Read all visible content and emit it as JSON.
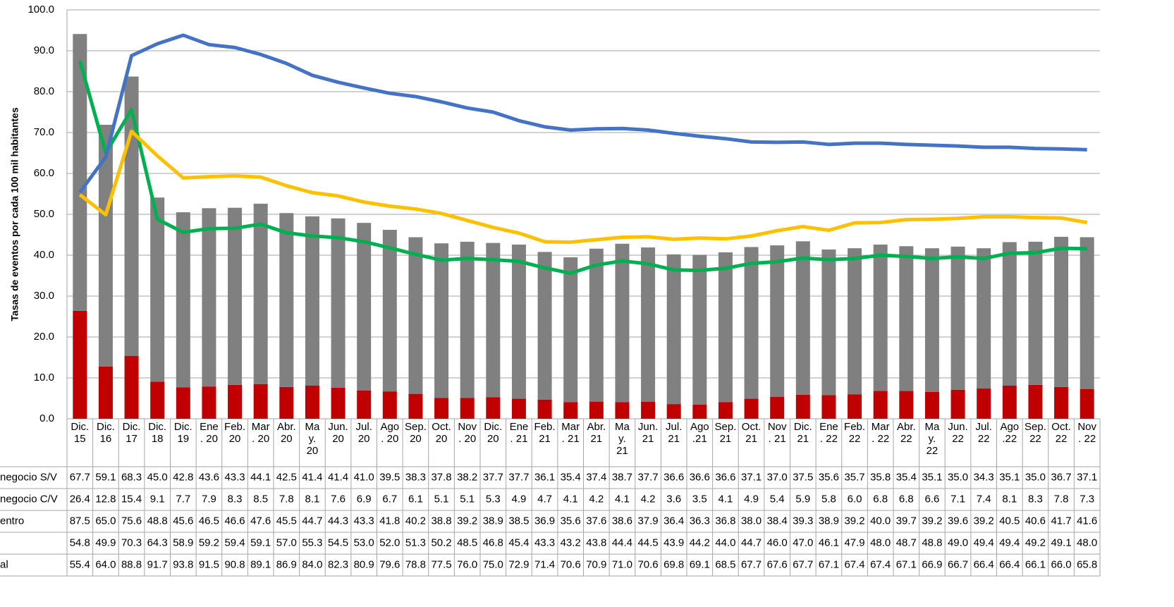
{
  "chart_data": {
    "type": "bar",
    "y_label": "Tasas de eventos por cada 100 mil habitantes",
    "ylim": [
      0,
      100
    ],
    "yticks": [
      {
        "value": 0,
        "label": "0.0"
      },
      {
        "value": 10,
        "label": "10.0"
      },
      {
        "value": 20,
        "label": "20.0"
      },
      {
        "value": 30,
        "label": "30.0"
      },
      {
        "value": 40,
        "label": "40.0"
      },
      {
        "value": 50,
        "label": "50.0"
      },
      {
        "value": 60,
        "label": "60.0"
      },
      {
        "value": 70,
        "label": "70.0"
      },
      {
        "value": 80,
        "label": "80.0"
      },
      {
        "value": 90,
        "label": "90.0"
      },
      {
        "value": 100,
        "label": "100.0"
      }
    ],
    "grid": true,
    "categories": [
      "Dic.\n15",
      "Dic.\n16",
      "Dic.\n17",
      "Dic.\n18",
      "Dic.\n19",
      "Ene\n. 20",
      "Feb.\n20",
      "Mar\n. 20",
      "Abr.\n20",
      "Ma\ny.\n20",
      "Jun.\n20",
      "Jul.\n20",
      "Ago\n. 20",
      "Sep.\n20",
      "Oct.\n20",
      "Nov\n. 20",
      "Dic.\n20",
      "Ene\n. 21",
      "Feb.\n21",
      "Mar\n. 21",
      "Abr.\n21",
      "Ma\ny.\n21",
      "Jun.\n21",
      "Jul.\n21",
      "Ago\n.21",
      "Sep.\n21",
      "Oct.\n21",
      "Nov\n. 21",
      "Dic.\n21",
      "Ene\n. 22",
      "Feb.\n22",
      "Mar\n. 22",
      "Abr.\n22",
      "Ma\ny.\n22",
      "Jun.\n22",
      "Jul.\n22",
      "Ago\n.22",
      "Sep.\n22",
      "Oct.\n22",
      "Nov\n. 22"
    ],
    "series": [
      {
        "name": "negocio S/V",
        "type": "bar",
        "color": "#808080",
        "values": [
          67.7,
          59.1,
          68.3,
          45.0,
          42.8,
          43.6,
          43.3,
          44.1,
          42.5,
          41.4,
          41.4,
          41.0,
          39.5,
          38.3,
          37.8,
          38.2,
          37.7,
          37.7,
          36.1,
          35.4,
          37.4,
          38.7,
          37.7,
          36.6,
          36.6,
          36.6,
          37.1,
          37.0,
          37.5,
          35.6,
          35.7,
          35.8,
          35.4,
          35.1,
          35.0,
          34.3,
          35.1,
          35.0,
          36.7,
          37.1
        ],
        "value_labels": [
          "67.7",
          "59.1",
          "68.3",
          "45.0",
          "42.8",
          "43.6",
          "43.3",
          "44.1",
          "42.5",
          "41.4",
          "41.4",
          "41.0",
          "39.5",
          "38.3",
          "37.8",
          "38.2",
          "37.7",
          "37.7",
          "36.1",
          "35.4",
          "37.4",
          "38.7",
          "37.7",
          "36.6",
          "36.6",
          "36.6",
          "37.1",
          "37.0",
          "37.5",
          "35.6",
          "35.7",
          "35.8",
          "35.4",
          "35.1",
          "35.0",
          "34.3",
          "35.1",
          "35.0",
          "36.7",
          "37.1"
        ]
      },
      {
        "name": "negocio C/V",
        "type": "bar",
        "color": "#c00000",
        "values": [
          26.4,
          12.8,
          15.4,
          9.1,
          7.7,
          7.9,
          8.3,
          8.5,
          7.8,
          8.1,
          7.6,
          6.9,
          6.7,
          6.1,
          5.1,
          5.1,
          5.3,
          4.9,
          4.7,
          4.1,
          4.2,
          4.1,
          4.2,
          3.6,
          3.5,
          4.1,
          4.9,
          5.4,
          5.9,
          5.8,
          6.0,
          6.8,
          6.8,
          6.6,
          7.1,
          7.4,
          8.1,
          8.3,
          7.8,
          7.3
        ],
        "value_labels": [
          "26.4",
          "12.8",
          "15.4",
          "9.1",
          "7.7",
          "7.9",
          "8.3",
          "8.5",
          "7.8",
          "8.1",
          "7.6",
          "6.9",
          "6.7",
          "6.1",
          "5.1",
          "5.1",
          "5.3",
          "4.9",
          "4.7",
          "4.1",
          "4.2",
          "4.1",
          "4.2",
          "3.6",
          "3.5",
          "4.1",
          "4.9",
          "5.4",
          "5.9",
          "5.8",
          "6.0",
          "6.8",
          "6.8",
          "6.6",
          "7.1",
          "7.4",
          "8.1",
          "8.3",
          "7.8",
          "7.3"
        ]
      },
      {
        "name": "entro",
        "type": "line",
        "color": "#00b050",
        "values": [
          87.5,
          65.0,
          75.6,
          48.8,
          45.6,
          46.5,
          46.6,
          47.6,
          45.5,
          44.7,
          44.3,
          43.3,
          41.8,
          40.2,
          38.8,
          39.2,
          38.9,
          38.5,
          36.9,
          35.6,
          37.6,
          38.6,
          37.9,
          36.4,
          36.3,
          36.8,
          38.0,
          38.4,
          39.3,
          38.9,
          39.2,
          40.0,
          39.7,
          39.2,
          39.6,
          39.2,
          40.5,
          40.6,
          41.7,
          41.6
        ],
        "value_labels": [
          "87.5",
          "65.0",
          "75.6",
          "48.8",
          "45.6",
          "46.5",
          "46.6",
          "47.6",
          "45.5",
          "44.7",
          "44.3",
          "43.3",
          "41.8",
          "40.2",
          "38.8",
          "39.2",
          "38.9",
          "38.5",
          "36.9",
          "35.6",
          "37.6",
          "38.6",
          "37.9",
          "36.4",
          "36.3",
          "36.8",
          "38.0",
          "38.4",
          "39.3",
          "38.9",
          "39.2",
          "40.0",
          "39.7",
          "39.2",
          "39.6",
          "39.2",
          "40.5",
          "40.6",
          "41.7",
          "41.6"
        ]
      },
      {
        "name": null,
        "type": "line",
        "color": "#ffc000",
        "values": [
          54.8,
          49.9,
          70.3,
          64.3,
          58.9,
          59.2,
          59.4,
          59.1,
          57.0,
          55.3,
          54.5,
          53.0,
          52.0,
          51.3,
          50.2,
          48.5,
          46.8,
          45.4,
          43.3,
          43.2,
          43.8,
          44.4,
          44.5,
          43.9,
          44.2,
          44.0,
          44.7,
          46.0,
          47.0,
          46.1,
          47.9,
          48.0,
          48.7,
          48.8,
          49.0,
          49.4,
          49.4,
          49.2,
          49.1,
          48.0
        ],
        "value_labels": [
          "54.8",
          "49.9",
          "70.3",
          "64.3",
          "58.9",
          "59.2",
          "59.4",
          "59.1",
          "57.0",
          "55.3",
          "54.5",
          "53.0",
          "52.0",
          "51.3",
          "50.2",
          "48.5",
          "46.8",
          "45.4",
          "43.3",
          "43.2",
          "43.8",
          "44.4",
          "44.5",
          "43.9",
          "44.2",
          "44.0",
          "44.7",
          "46.0",
          "47.0",
          "46.1",
          "47.9",
          "48.0",
          "48.7",
          "48.8",
          "49.0",
          "49.4",
          "49.4",
          "49.2",
          "49.1",
          "48.0"
        ]
      },
      {
        "name": "al",
        "type": "line",
        "color": "#4472c4",
        "values": [
          55.4,
          64.0,
          88.8,
          91.7,
          93.8,
          91.5,
          90.8,
          89.1,
          86.9,
          84.0,
          82.3,
          80.9,
          79.6,
          78.8,
          77.5,
          76.0,
          75.0,
          72.9,
          71.4,
          70.6,
          70.9,
          71.0,
          70.6,
          69.8,
          69.1,
          68.5,
          67.7,
          67.6,
          67.7,
          67.1,
          67.4,
          67.4,
          67.1,
          66.9,
          66.7,
          66.4,
          66.4,
          66.1,
          66.0,
          65.8
        ],
        "value_labels": [
          "55.4",
          "64.0",
          "88.8",
          "91.7",
          "93.8",
          "91.5",
          "90.8",
          "89.1",
          "86.9",
          "84.0",
          "82.3",
          "80.9",
          "79.6",
          "78.8",
          "77.5",
          "76.0",
          "75.0",
          "72.9",
          "71.4",
          "70.6",
          "70.9",
          "71.0",
          "70.6",
          "69.8",
          "69.1",
          "68.5",
          "67.7",
          "67.6",
          "67.7",
          "67.1",
          "67.4",
          "67.4",
          "67.1",
          "66.9",
          "66.7",
          "66.4",
          "66.4",
          "66.1",
          "66.0",
          "65.8"
        ]
      }
    ]
  }
}
